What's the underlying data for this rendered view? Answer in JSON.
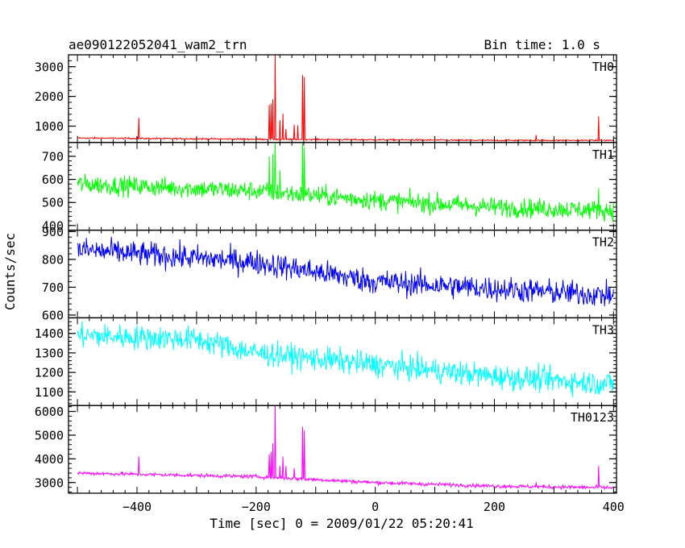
{
  "header": {
    "title": "ae090122052041_wam2_trn",
    "bin_time": "Bin time: 1.0 s"
  },
  "axes": {
    "ylabel": "Counts/sec",
    "xlabel": "Time [sec] 0 = 2009/01/22 05:20:41"
  },
  "chart_data": {
    "type": "line",
    "x_range": [
      -515,
      405
    ],
    "x_ticks": [
      -400,
      -200,
      0,
      200,
      400
    ],
    "x_tick_labels": [
      "−400",
      "−200",
      "0",
      "200",
      "400"
    ],
    "grid": false,
    "panels": [
      {
        "name": "TH0",
        "color": "#ff0000",
        "ylim": [
          450,
          3400
        ],
        "yticks": [
          1000,
          2000,
          3000
        ],
        "base": [
          [
            -500,
            600
          ],
          [
            -200,
            560
          ],
          [
            0,
            540
          ],
          [
            200,
            520
          ],
          [
            400,
            520
          ]
        ],
        "noise": 18,
        "spikes": [
          [
            -397,
            1280
          ],
          [
            -178,
            1720
          ],
          [
            -175,
            1760
          ],
          [
            -172,
            1900
          ],
          [
            -168,
            3400
          ],
          [
            -160,
            1200
          ],
          [
            -155,
            1420
          ],
          [
            -150,
            900
          ],
          [
            -136,
            1050
          ],
          [
            -130,
            1030
          ],
          [
            -122,
            2720
          ],
          [
            -119,
            2650
          ],
          [
            270,
            700
          ],
          [
            375,
            1330
          ]
        ]
      },
      {
        "name": "TH1",
        "color": "#00ff00",
        "ylim": [
          380,
          760
        ],
        "yticks": [
          400,
          500,
          600,
          700
        ],
        "base": [
          [
            -500,
            580
          ],
          [
            -200,
            550
          ],
          [
            0,
            510
          ],
          [
            200,
            480
          ],
          [
            400,
            465
          ]
        ],
        "noise": 30,
        "spikes": [
          [
            -178,
            700
          ],
          [
            -172,
            710
          ],
          [
            -168,
            760
          ],
          [
            -160,
            640
          ],
          [
            -122,
            760
          ],
          [
            -119,
            740
          ],
          [
            375,
            560
          ]
        ]
      },
      {
        "name": "TH2",
        "color": "#0000ff",
        "ylim": [
          590,
          905
        ],
        "yticks": [
          600,
          700,
          800,
          900
        ],
        "base": [
          [
            -500,
            835
          ],
          [
            -200,
            790
          ],
          [
            0,
            720
          ],
          [
            200,
            695
          ],
          [
            400,
            670
          ]
        ],
        "noise": 32,
        "spikes": []
      },
      {
        "name": "TH3",
        "color": "#00ffff",
        "ylim": [
          1030,
          1480
        ],
        "yticks": [
          1100,
          1200,
          1300,
          1400
        ],
        "base": [
          [
            -500,
            1390
          ],
          [
            -300,
            1370
          ],
          [
            -200,
            1300
          ],
          [
            0,
            1240
          ],
          [
            200,
            1180
          ],
          [
            400,
            1140
          ]
        ],
        "noise": 45,
        "spikes": []
      },
      {
        "name": "TH0123",
        "color": "#ff00ff",
        "ylim": [
          2550,
          6250
        ],
        "yticks": [
          3000,
          4000,
          5000,
          6000
        ],
        "base": [
          [
            -500,
            3400
          ],
          [
            -200,
            3250
          ],
          [
            0,
            3000
          ],
          [
            200,
            2850
          ],
          [
            400,
            2780
          ]
        ],
        "noise": 55,
        "spikes": [
          [
            -397,
            4100
          ],
          [
            -178,
            4200
          ],
          [
            -175,
            4300
          ],
          [
            -172,
            4650
          ],
          [
            -168,
            6250
          ],
          [
            -160,
            3700
          ],
          [
            -155,
            4100
          ],
          [
            -150,
            3700
          ],
          [
            -136,
            3600
          ],
          [
            -122,
            5350
          ],
          [
            -119,
            5200
          ],
          [
            270,
            3000
          ],
          [
            375,
            3700
          ]
        ]
      }
    ]
  }
}
